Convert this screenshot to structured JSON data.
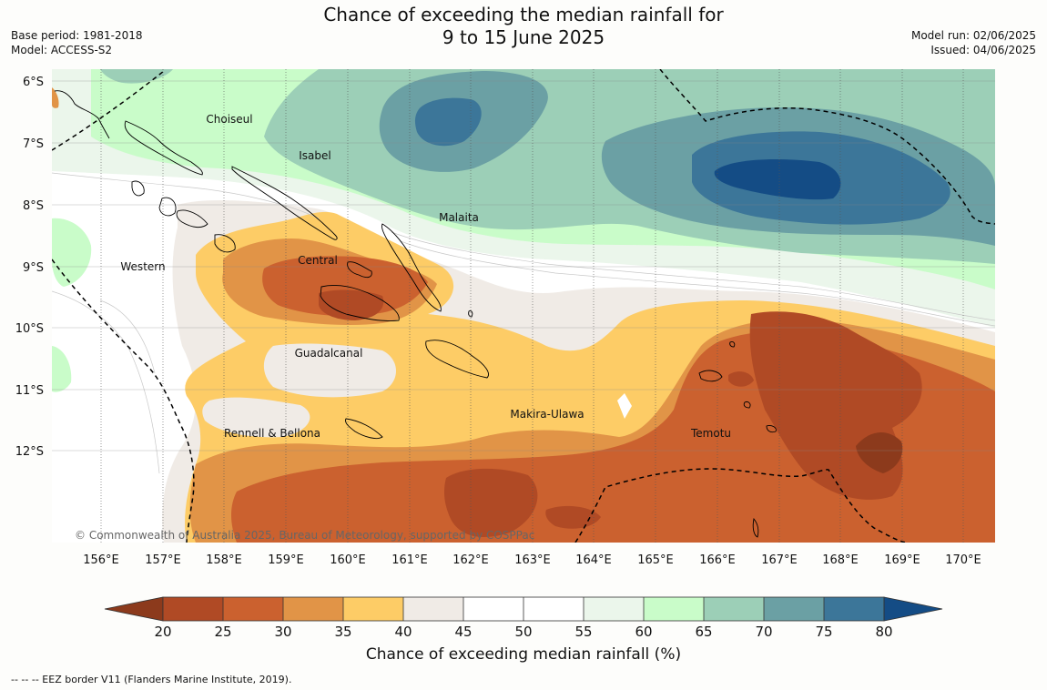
{
  "header": {
    "title_line1": "Chance of exceeding the median rainfall for",
    "title_line2": "9 to 15 June 2025",
    "base_period": "Base period: 1981-2018",
    "model": "Model: ACCESS-S2",
    "model_run": "Model run: 02/06/2025",
    "issued": "Issued: 04/06/2025"
  },
  "map": {
    "lat_labels": [
      "6°S",
      "7°S",
      "8°S",
      "9°S",
      "10°S",
      "11°S",
      "12°S"
    ],
    "lon_labels": [
      "156°E",
      "157°E",
      "158°E",
      "159°E",
      "160°E",
      "161°E",
      "162°E",
      "163°E",
      "164°E",
      "165°E",
      "166°E",
      "167°E",
      "168°E",
      "169°E",
      "170°E"
    ],
    "provinces": {
      "choiseul": "Choiseul",
      "isabel": "Isabel",
      "malaita": "Malaita",
      "western": "Western",
      "central": "Central",
      "guadalcanal": "Guadalcanal",
      "makira": "Makira-Ulawa",
      "rennell": "Rennell & Bellona",
      "temotu": "Temotu"
    },
    "copyright": "© Commonwealth of Australia 2025, Bureau of Meteorology, supported by COSPPac"
  },
  "colorbar": {
    "ticks": [
      "20",
      "25",
      "30",
      "35",
      "40",
      "45",
      "50",
      "55",
      "60",
      "65",
      "70",
      "75",
      "80"
    ],
    "colors": [
      "#8c3a1c",
      "#b04a25",
      "#cb612f",
      "#e19447",
      "#fdcc66",
      "#f0ebe6",
      "#ffffff",
      "#ffffff",
      "#ebf6eb",
      "#c9fcc9",
      "#9ccfb7",
      "#6ba0a4",
      "#3c7699",
      "#144c85"
    ],
    "label": "Chance of exceeding median rainfall (%)"
  },
  "footer": {
    "legend": "--  --  -- EEZ border V11 (Flanders Marine Institute, 2019)."
  }
}
